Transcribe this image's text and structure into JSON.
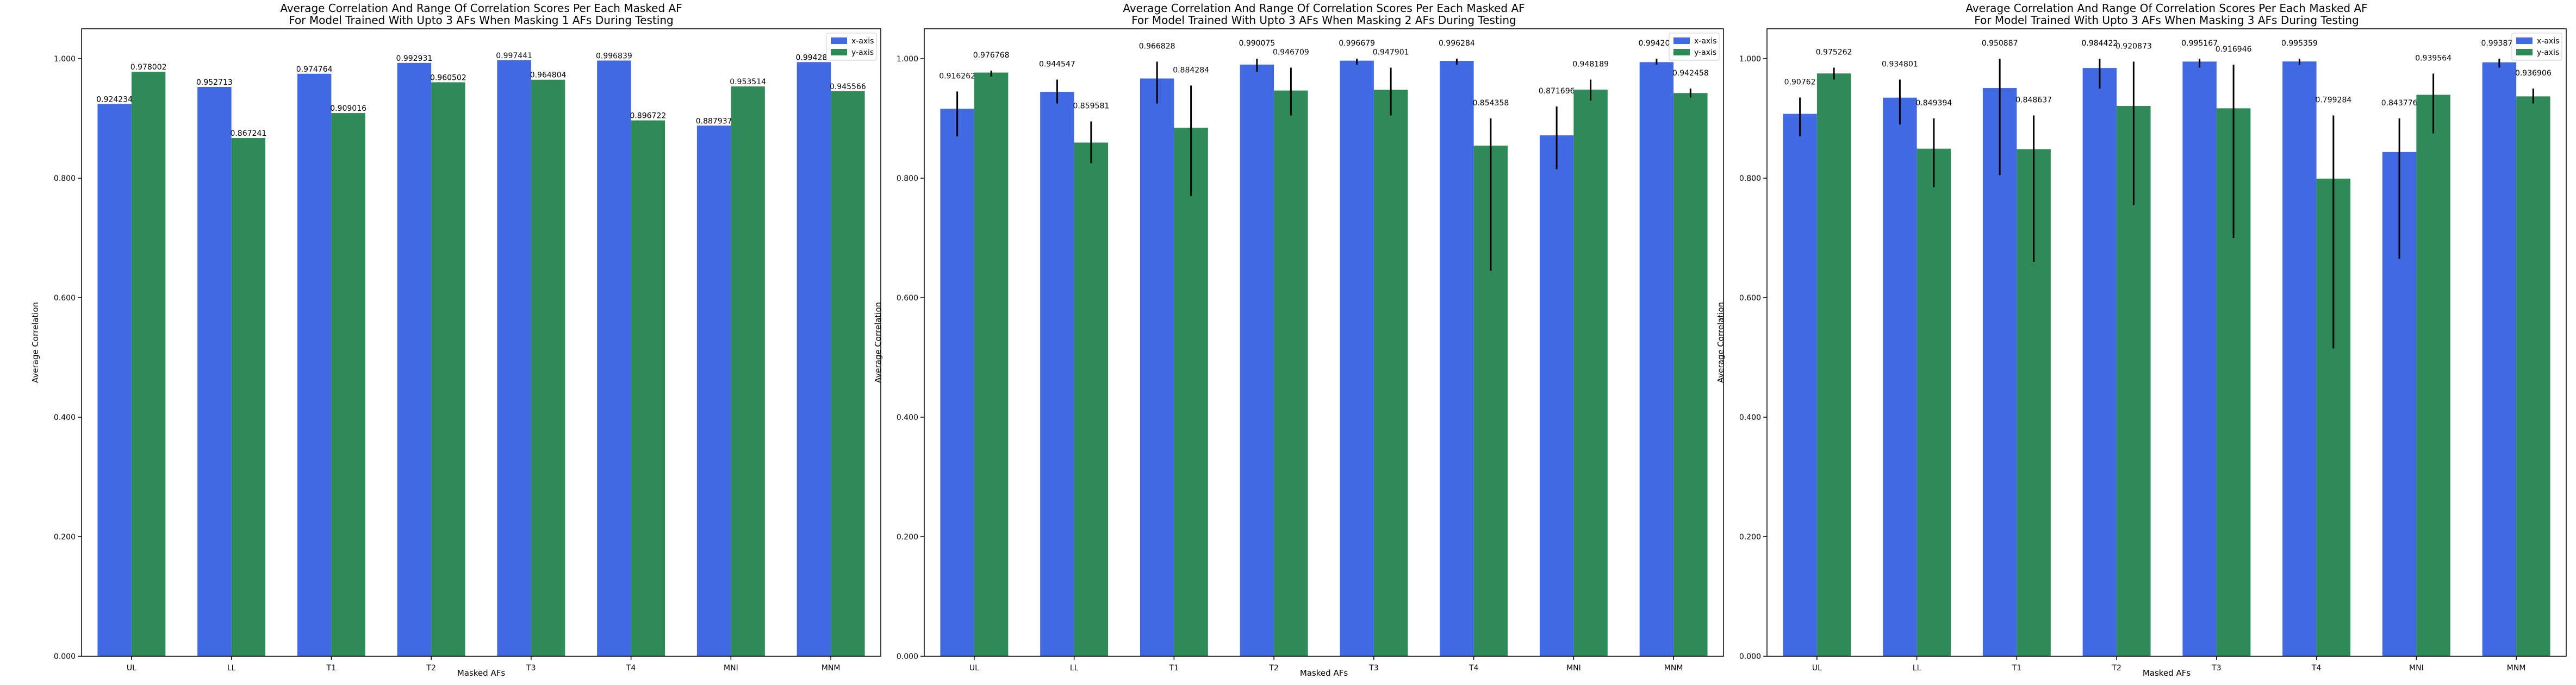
{
  "colors": {
    "x_axis": "#4169E1",
    "y_axis": "#2E8B57",
    "error_bar": "#000000",
    "frame": "#000000",
    "background": "#ffffff"
  },
  "chart_data": [
    {
      "type": "bar",
      "title_line1": "Average Correlation And Range Of Correlation Scores Per Each Masked AF",
      "title_line2": "For Model Trained With Upto 3 AFs When Masking 1 AFs During Testing",
      "xlabel": "Masked AFs",
      "ylabel": "Average Correlation",
      "categories": [
        "UL",
        "LL",
        "T1",
        "T2",
        "T3",
        "T4",
        "MNI",
        "MNM"
      ],
      "yticks": [
        "0.000",
        "0.200",
        "0.400",
        "0.600",
        "0.800",
        "1.000"
      ],
      "ylim": [
        0,
        1.05
      ],
      "legend": "top-right",
      "grid": false,
      "series": [
        {
          "name": "x-axis",
          "values": [
            0.924234,
            0.952713,
            0.974764,
            0.992931,
            0.997441,
            0.996839,
            0.887937,
            0.994287
          ],
          "labels": [
            "0.924234",
            "0.952713",
            "0.974764",
            "0.992931",
            "0.997441",
            "0.996839",
            "0.887937",
            "0.994287"
          ]
        },
        {
          "name": "y-axis",
          "values": [
            0.978002,
            0.867241,
            0.909016,
            0.960502,
            0.964804,
            0.896722,
            0.953514,
            0.945566
          ],
          "labels": [
            "0.978002",
            "0.867241",
            "0.909016",
            "0.960502",
            "0.964804",
            "0.896722",
            "0.953514",
            "0.945566"
          ]
        }
      ]
    },
    {
      "type": "bar",
      "title_line1": "Average Correlation And Range Of Correlation Scores Per Each Masked AF",
      "title_line2": "For Model Trained With Upto 3 AFs When Masking 2 AFs During Testing",
      "xlabel": "Masked AFs",
      "ylabel": "Average Correlation",
      "categories": [
        "UL",
        "LL",
        "T1",
        "T2",
        "T3",
        "T4",
        "MNI",
        "MNM"
      ],
      "yticks": [
        "0.000",
        "0.200",
        "0.400",
        "0.600",
        "0.800",
        "1.000"
      ],
      "ylim": [
        0,
        1.05
      ],
      "legend": "top-right",
      "grid": false,
      "series": [
        {
          "name": "x-axis",
          "values": [
            0.916262,
            0.944547,
            0.966828,
            0.990075,
            0.996679,
            0.996284,
            0.871696,
            0.994207
          ],
          "labels": [
            "0.916262",
            "0.944547",
            "0.966828",
            "0.990075",
            "0.996679",
            "0.996284",
            "0.871696",
            "0.994207"
          ],
          "err_low": [
            0.87,
            0.925,
            0.925,
            0.978,
            0.99,
            0.99,
            0.815,
            0.99
          ],
          "err_high": [
            0.945,
            0.965,
            0.995,
            1.0,
            1.0,
            1.0,
            0.92,
            1.0
          ]
        },
        {
          "name": "y-axis",
          "values": [
            0.976768,
            0.859581,
            0.884284,
            0.946709,
            0.947901,
            0.854358,
            0.948189,
            0.942458
          ],
          "labels": [
            "0.976768",
            "0.859581",
            "0.884284",
            "0.946709",
            "0.947901",
            "0.854358",
            "0.948189",
            "0.942458"
          ],
          "err_low": [
            0.97,
            0.825,
            0.77,
            0.905,
            0.905,
            0.645,
            0.93,
            0.935
          ],
          "err_high": [
            0.98,
            0.895,
            0.955,
            0.985,
            0.985,
            0.9,
            0.965,
            0.95
          ]
        }
      ]
    },
    {
      "type": "bar",
      "title_line1": "Average Correlation And Range Of Correlation Scores Per Each Masked AF",
      "title_line2": "For Model Trained With Upto 3 AFs When Masking 3 AFs During Testing",
      "xlabel": "Masked AFs",
      "ylabel": "Average Correlation",
      "categories": [
        "UL",
        "LL",
        "T1",
        "T2",
        "T3",
        "T4",
        "MNI",
        "MNM"
      ],
      "yticks": [
        "0.000",
        "0.200",
        "0.400",
        "0.600",
        "0.800",
        "1.000"
      ],
      "ylim": [
        0,
        1.05
      ],
      "legend": "top-right",
      "grid": false,
      "series": [
        {
          "name": "x-axis",
          "values": [
            0.90762,
            0.934801,
            0.950887,
            0.984422,
            0.995167,
            0.995359,
            0.843776,
            0.993877
          ],
          "labels": [
            "0.90762",
            "0.934801",
            "0.950887",
            "0.984422",
            "0.995167",
            "0.995359",
            "0.843776",
            "0.993877"
          ],
          "err_low": [
            0.87,
            0.89,
            0.805,
            0.95,
            0.985,
            0.99,
            0.665,
            0.985
          ],
          "err_high": [
            0.935,
            0.965,
            1.0,
            1.0,
            1.0,
            1.0,
            0.9,
            1.0
          ]
        },
        {
          "name": "y-axis",
          "values": [
            0.975262,
            0.849394,
            0.848637,
            0.920873,
            0.916946,
            0.799284,
            0.939564,
            0.936906
          ],
          "labels": [
            "0.975262",
            "0.849394",
            "0.848637",
            "0.920873",
            "0.916946",
            "0.799284",
            "0.939564",
            "0.936906"
          ],
          "err_low": [
            0.965,
            0.785,
            0.66,
            0.755,
            0.7,
            0.515,
            0.875,
            0.925
          ],
          "err_high": [
            0.985,
            0.9,
            0.905,
            0.995,
            0.99,
            0.905,
            0.975,
            0.95
          ]
        }
      ]
    }
  ]
}
